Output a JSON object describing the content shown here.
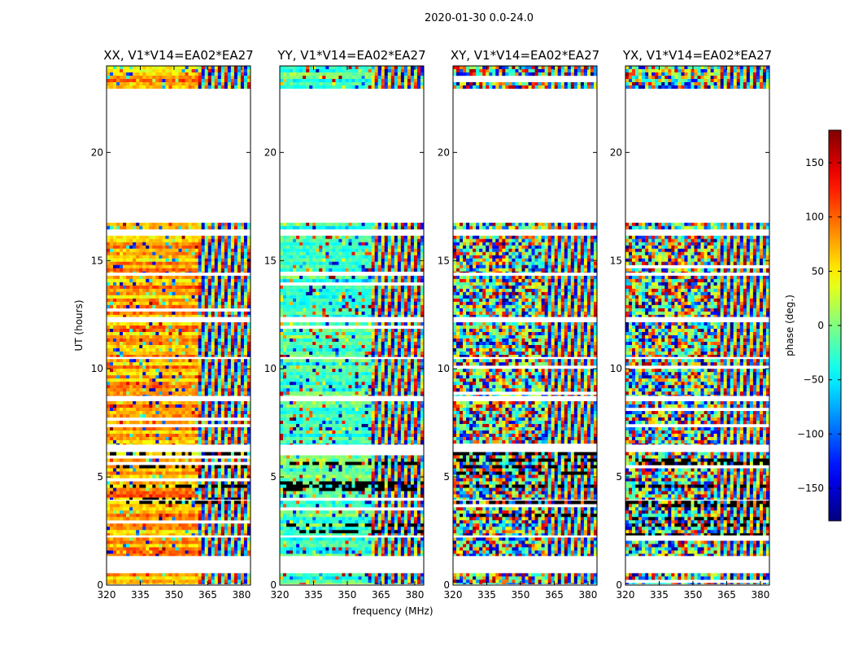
{
  "figure": {
    "suptitle": "2020-01-30 0.0-24.0",
    "xlabel": "frequency (MHz)",
    "ylabel": "UT (hours)"
  },
  "colors": {
    "background": "#ffffff",
    "axis": "#000000",
    "gap": "#ffffff"
  },
  "chart_data": {
    "type": "heatmap",
    "colormap": "jet",
    "xlim": [
      320,
      384
    ],
    "ylim": [
      0,
      24
    ],
    "xticks": [
      320,
      335,
      350,
      365,
      380
    ],
    "xtick_labels": [
      "320",
      "335",
      "350",
      "365",
      "380"
    ],
    "yticks": [
      0,
      5,
      10,
      15,
      20
    ],
    "ytick_labels": [
      "0",
      "5",
      "10",
      "15",
      "20"
    ],
    "panels": [
      {
        "title": "XX, V1*V14=EA02*EA27",
        "base_phase": 75,
        "coherence": 0.85,
        "fringe_start_mhz": 361
      },
      {
        "title": "YY, V1*V14=EA02*EA27",
        "base_phase": -20,
        "coherence": 0.8,
        "fringe_start_mhz": 361
      },
      {
        "title": "XY, V1*V14=EA02*EA27",
        "base_phase": 0,
        "coherence": 0.15,
        "fringe_start_mhz": 361
      },
      {
        "title": "YX, V1*V14=EA02*EA27",
        "base_phase": 0,
        "coherence": 0.15,
        "fringe_start_mhz": 361
      }
    ],
    "data_time_ranges_hours": [
      [
        0.05,
        0.55
      ],
      [
        1.35,
        2.2
      ],
      [
        2.3,
        3.9
      ],
      [
        3.95,
        6.15
      ],
      [
        6.5,
        8.5
      ],
      [
        8.75,
        10.45
      ],
      [
        10.55,
        12.15
      ],
      [
        12.4,
        14.3
      ],
      [
        14.45,
        16.15
      ],
      [
        16.45,
        16.75
      ],
      [
        22.95,
        24.0
      ]
    ],
    "colorbar": {
      "label": "phase (deg.)",
      "range": [
        -180,
        180
      ],
      "ticks": [
        150,
        100,
        50,
        0,
        -50,
        -100,
        -150
      ],
      "tick_labels": [
        "150",
        "100",
        "50",
        "0",
        "−50",
        "−100",
        "−150"
      ]
    }
  }
}
